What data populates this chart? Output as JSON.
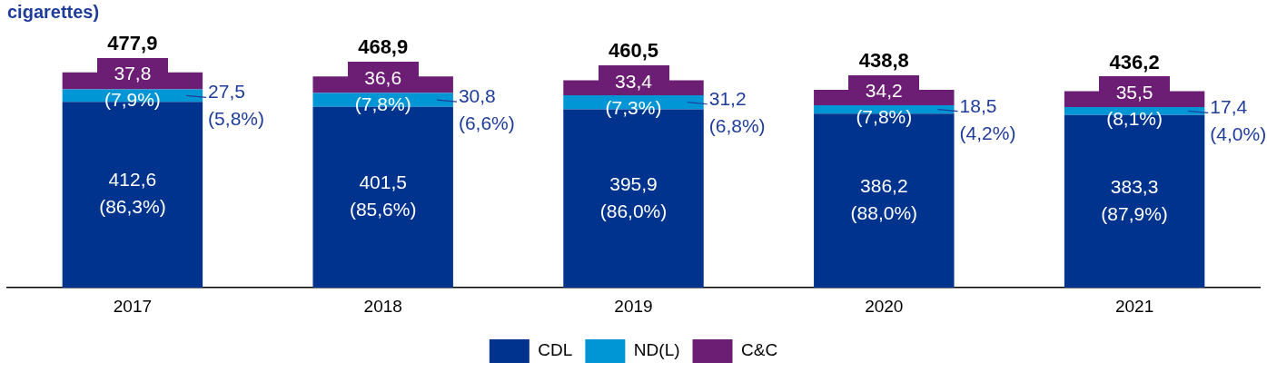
{
  "chart_data": {
    "type": "bar",
    "title": "cigarettes)",
    "stacked": true,
    "legend": "bottom",
    "grid": false,
    "categories": [
      "2017",
      "2018",
      "2019",
      "2020",
      "2021"
    ],
    "series": [
      {
        "name": "CDL",
        "color": "#00338d",
        "values": [
          412.6,
          401.5,
          395.9,
          386.2,
          383.3
        ],
        "value_labels": [
          "412,6 (86,3%)",
          "401,5 (85,6%)",
          "395,9 (86,0%)",
          "386,2 (88,0%)",
          "383,3 (87,9%)"
        ]
      },
      {
        "name": "ND(L)",
        "color": "#0096d6",
        "values": [
          27.5,
          30.8,
          31.2,
          18.5,
          17.4
        ],
        "value_labels": [
          "27,5 (5,8%)",
          "30,8 (6,6%)",
          "31,2 (6,8%)",
          "18,5 (4,2%)",
          "17,4 (4,0%)"
        ]
      },
      {
        "name": "C&C",
        "color": "#6c1d74",
        "values": [
          37.8,
          36.6,
          33.4,
          34.2,
          35.5
        ],
        "value_labels": [
          "37,8 (7,9%)",
          "36,6 (7,8%)",
          "33,4 (7,3%)",
          "34,2 (7,8%)",
          "35,5 (8,1%)"
        ]
      }
    ],
    "totals": [
      "477,9",
      "468,9",
      "460,5",
      "438,8",
      "436,2"
    ]
  }
}
